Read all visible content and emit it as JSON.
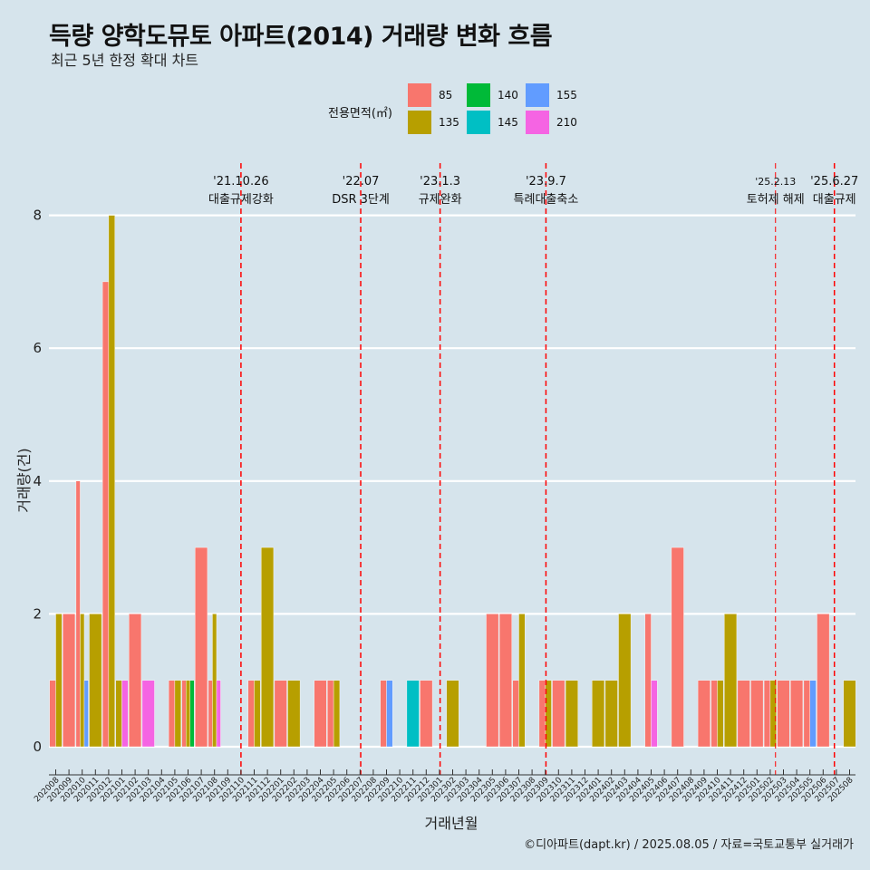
{
  "title": "득량 양학도뮤토 아파트(2014) 거래량 변화 흐름",
  "subtitle": "최근 5년 한정 확대 차트",
  "caption": "©디아파트(dapt.kr) / 2025.08.05 / 자료=국토교통부 실거래가",
  "legend": {
    "title": "전용면적(㎡)",
    "items": [
      {
        "label": "85",
        "color": "#f8766d"
      },
      {
        "label": "135",
        "color": "#b79f00"
      },
      {
        "label": "140",
        "color": "#00ba38"
      },
      {
        "label": "145",
        "color": "#00bfc4"
      },
      {
        "label": "155",
        "color": "#619cff"
      },
      {
        "label": "210",
        "color": "#f564e3"
      }
    ]
  },
  "chart_data": {
    "type": "bar",
    "title": "득량 양학도뮤토 아파트(2014) 거래량 변화 흐름",
    "xlabel": "거래년월",
    "ylabel": "거래량(건)",
    "ylim": [
      0,
      8
    ],
    "yticks": [
      0,
      2,
      4,
      6,
      8
    ],
    "grid": true,
    "legend_position": "top",
    "categories": [
      "202008",
      "202009",
      "202010",
      "202011",
      "202012",
      "202101",
      "202102",
      "202103",
      "202104",
      "202105",
      "202106",
      "202107",
      "202108",
      "202109",
      "202110",
      "202111",
      "202112",
      "202201",
      "202202",
      "202203",
      "202204",
      "202205",
      "202206",
      "202207",
      "202208",
      "202209",
      "202210",
      "202211",
      "202212",
      "202301",
      "202302",
      "202303",
      "202304",
      "202305",
      "202306",
      "202307",
      "202308",
      "202309",
      "202310",
      "202311",
      "202312",
      "202401",
      "202402",
      "202403",
      "202404",
      "202405",
      "202406",
      "202407",
      "202408",
      "202409",
      "202410",
      "202411",
      "202412",
      "202501",
      "202502",
      "202503",
      "202504",
      "202505",
      "202506",
      "202507",
      "202508"
    ],
    "series": [
      {
        "name": "85",
        "values": [
          1,
          2,
          4,
          0,
          7,
          0,
          2,
          0,
          0,
          1,
          1,
          3,
          1,
          0,
          0,
          1,
          0,
          1,
          0,
          0,
          1,
          1,
          0,
          0,
          0,
          1,
          0,
          0,
          1,
          0,
          0,
          0,
          0,
          2,
          2,
          1,
          0,
          1,
          1,
          0,
          0,
          0,
          0,
          0,
          0,
          2,
          0,
          3,
          0,
          1,
          1,
          0,
          1,
          1,
          1,
          1,
          1,
          1,
          2,
          0,
          0
        ]
      },
      {
        "name": "135",
        "values": [
          2,
          0,
          2,
          2,
          8,
          1,
          0,
          0,
          0,
          1,
          1,
          0,
          2,
          0,
          0,
          1,
          3,
          0,
          1,
          0,
          0,
          1,
          0,
          0,
          0,
          0,
          0,
          0,
          0,
          0,
          1,
          0,
          0,
          0,
          0,
          2,
          0,
          1,
          0,
          1,
          0,
          1,
          1,
          2,
          0,
          0,
          0,
          0,
          0,
          0,
          1,
          2,
          0,
          0,
          1,
          0,
          0,
          0,
          0,
          0,
          1
        ]
      },
      {
        "name": "140",
        "values": [
          0,
          0,
          0,
          0,
          0,
          0,
          0,
          0,
          0,
          0,
          1,
          0,
          0,
          0,
          0,
          0,
          0,
          0,
          0,
          0,
          0,
          0,
          0,
          0,
          0,
          0,
          0,
          0,
          0,
          0,
          0,
          0,
          0,
          0,
          0,
          0,
          0,
          0,
          0,
          0,
          0,
          0,
          0,
          0,
          0,
          0,
          0,
          0,
          0,
          0,
          0,
          0,
          0,
          0,
          0,
          0,
          0,
          0,
          0,
          0,
          0
        ]
      },
      {
        "name": "145",
        "values": [
          0,
          0,
          0,
          0,
          0,
          0,
          0,
          0,
          0,
          0,
          0,
          0,
          0,
          0,
          0,
          0,
          0,
          0,
          0,
          0,
          0,
          0,
          0,
          0,
          0,
          0,
          0,
          1,
          0,
          0,
          0,
          0,
          0,
          0,
          0,
          0,
          0,
          0,
          0,
          0,
          0,
          0,
          0,
          0,
          0,
          0,
          0,
          0,
          0,
          0,
          0,
          0,
          0,
          0,
          0,
          0,
          0,
          0,
          0,
          0,
          0
        ]
      },
      {
        "name": "155",
        "values": [
          0,
          0,
          1,
          0,
          0,
          0,
          0,
          0,
          0,
          0,
          0,
          0,
          0,
          0,
          0,
          0,
          0,
          0,
          0,
          0,
          0,
          0,
          0,
          0,
          0,
          1,
          0,
          0,
          0,
          0,
          0,
          0,
          0,
          0,
          0,
          0,
          0,
          0,
          0,
          0,
          0,
          0,
          0,
          0,
          0,
          0,
          0,
          0,
          0,
          0,
          0,
          0,
          0,
          0,
          0,
          0,
          0,
          1,
          0,
          0,
          0
        ]
      },
      {
        "name": "210",
        "values": [
          0,
          0,
          0,
          0,
          0,
          1,
          0,
          1,
          0,
          0,
          0,
          0,
          1,
          0,
          0,
          0,
          0,
          0,
          0,
          0,
          0,
          0,
          0,
          0,
          0,
          0,
          0,
          0,
          0,
          0,
          0,
          0,
          0,
          0,
          0,
          0,
          0,
          0,
          0,
          0,
          0,
          0,
          0,
          0,
          0,
          1,
          0,
          0,
          0,
          0,
          0,
          0,
          0,
          0,
          0,
          0,
          0,
          0,
          0,
          0,
          0
        ]
      }
    ],
    "annotations": [
      {
        "x": 14.0,
        "date": "'21.10.26",
        "label": "대출규제강화"
      },
      {
        "x": 23.05,
        "date": "'22.07",
        "label": "DSR 3단계"
      },
      {
        "x": 29.05,
        "date": "'23.1.3",
        "label": "규제완화"
      },
      {
        "x": 37.05,
        "date": "'23.9.7",
        "label": "특례대출축소"
      },
      {
        "x": 54.4,
        "date": "'25.2.13",
        "label": "토허제 해제",
        "small": true
      },
      {
        "x": 58.85,
        "date": "'25.6.27",
        "label": "대출규제"
      }
    ]
  }
}
